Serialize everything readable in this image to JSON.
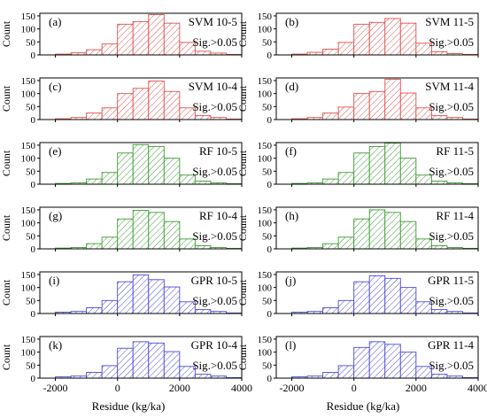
{
  "figure": {
    "x_axis_label": "Residue (kg/ka)",
    "y_axis_label": "Count",
    "x_ticks": [
      -2000,
      0,
      2000,
      4000
    ],
    "y_ticks": [
      0,
      50,
      100,
      150
    ]
  },
  "colors": {
    "SVM": "#e05050",
    "RF": "#3c9a32",
    "GPR": "#4a4ad8"
  },
  "chart_data": [
    {
      "type": "bar",
      "panel": "(a)",
      "model": "SVM",
      "label": "SVM 10-5",
      "sig": "Sig.>0.05",
      "bin_edges": [
        -2500,
        -2000,
        -1500,
        -1000,
        -500,
        0,
        500,
        1000,
        1500,
        2000,
        2500,
        3000,
        3500,
        4000
      ],
      "values": [
        0,
        3,
        8,
        20,
        42,
        118,
        128,
        155,
        122,
        48,
        14,
        7,
        2
      ],
      "xlim": [
        -2500,
        4000
      ],
      "ylim": [
        0,
        160
      ],
      "xlabel": "",
      "ylabel": "Count"
    },
    {
      "type": "bar",
      "panel": "(b)",
      "model": "SVM",
      "label": "SVM 11-5",
      "sig": "Sig.>0.05",
      "bin_edges": [
        -2500,
        -2000,
        -1500,
        -1000,
        -500,
        0,
        500,
        1000,
        1500,
        2000,
        2500,
        3000,
        3500,
        4000
      ],
      "values": [
        0,
        3,
        10,
        22,
        48,
        118,
        125,
        140,
        122,
        45,
        12,
        5,
        2
      ],
      "xlim": [
        -2500,
        4000
      ],
      "ylim": [
        0,
        160
      ],
      "xlabel": "",
      "ylabel": ""
    },
    {
      "type": "bar",
      "panel": "(c)",
      "model": "SVM",
      "label": "SVM 10-4",
      "sig": "Sig.>0.05",
      "bin_edges": [
        -2500,
        -2000,
        -1500,
        -1000,
        -500,
        0,
        500,
        1000,
        1500,
        2000,
        2500,
        3000,
        3500,
        4000
      ],
      "values": [
        0,
        3,
        8,
        25,
        45,
        100,
        120,
        148,
        108,
        45,
        15,
        8,
        2
      ],
      "xlim": [
        -2500,
        4000
      ],
      "ylim": [
        0,
        160
      ],
      "xlabel": "",
      "ylabel": "Count"
    },
    {
      "type": "bar",
      "panel": "(d)",
      "model": "SVM",
      "label": "SVM 11-4",
      "sig": "Sig.>0.05",
      "bin_edges": [
        -2500,
        -2000,
        -1500,
        -1000,
        -500,
        0,
        500,
        1000,
        1500,
        2000,
        2500,
        3000,
        3500,
        4000
      ],
      "values": [
        0,
        3,
        8,
        25,
        48,
        100,
        108,
        155,
        102,
        45,
        15,
        8,
        2
      ],
      "xlim": [
        -2500,
        4000
      ],
      "ylim": [
        0,
        160
      ],
      "xlabel": "",
      "ylabel": ""
    },
    {
      "type": "bar",
      "panel": "(e)",
      "model": "RF",
      "label": "RF 10-5",
      "sig": "Sig.>0.05",
      "bin_edges": [
        -2500,
        -2000,
        -1500,
        -1000,
        -500,
        0,
        500,
        1000,
        1500,
        2000,
        2500,
        3000,
        3500,
        4000
      ],
      "values": [
        0,
        3,
        5,
        20,
        45,
        120,
        152,
        145,
        100,
        35,
        12,
        5,
        2
      ],
      "xlim": [
        -2500,
        4000
      ],
      "ylim": [
        0,
        160
      ],
      "xlabel": "",
      "ylabel": "Count"
    },
    {
      "type": "bar",
      "panel": "(f)",
      "model": "RF",
      "label": "RF 11-5",
      "sig": "Sig.>0.05",
      "bin_edges": [
        -2500,
        -2000,
        -1500,
        -1000,
        -500,
        0,
        500,
        1000,
        1500,
        2000,
        2500,
        3000,
        3500,
        4000
      ],
      "values": [
        0,
        3,
        5,
        20,
        45,
        120,
        145,
        158,
        100,
        35,
        12,
        5,
        2
      ],
      "xlim": [
        -2500,
        4000
      ],
      "ylim": [
        0,
        160
      ],
      "xlabel": "",
      "ylabel": ""
    },
    {
      "type": "bar",
      "panel": "(g)",
      "model": "RF",
      "label": "RF 10-4",
      "sig": "Sig.>0.05",
      "bin_edges": [
        -2500,
        -2000,
        -1500,
        -1000,
        -500,
        0,
        500,
        1000,
        1500,
        2000,
        2500,
        3000,
        3500,
        4000
      ],
      "values": [
        0,
        3,
        5,
        20,
        45,
        115,
        148,
        140,
        105,
        38,
        12,
        5,
        2
      ],
      "xlim": [
        -2500,
        4000
      ],
      "ylim": [
        0,
        160
      ],
      "xlabel": "",
      "ylabel": "Count"
    },
    {
      "type": "bar",
      "panel": "(h)",
      "model": "RF",
      "label": "RF 11-4",
      "sig": "Sig.>0.05",
      "bin_edges": [
        -2500,
        -2000,
        -1500,
        -1000,
        -500,
        0,
        500,
        1000,
        1500,
        2000,
        2500,
        3000,
        3500,
        4000
      ],
      "values": [
        0,
        3,
        5,
        20,
        45,
        115,
        150,
        140,
        105,
        38,
        12,
        5,
        2
      ],
      "xlim": [
        -2500,
        4000
      ],
      "ylim": [
        0,
        160
      ],
      "xlabel": "",
      "ylabel": ""
    },
    {
      "type": "bar",
      "panel": "(i)",
      "model": "GPR",
      "label": "GPR 10-5",
      "sig": "Sig.>0.05",
      "bin_edges": [
        -2500,
        -2000,
        -1500,
        -1000,
        -500,
        0,
        500,
        1000,
        1500,
        2000,
        2500,
        3000,
        3500,
        4000
      ],
      "values": [
        0,
        5,
        8,
        22,
        50,
        122,
        148,
        130,
        102,
        45,
        15,
        8,
        2
      ],
      "xlim": [
        -2500,
        4000
      ],
      "ylim": [
        0,
        160
      ],
      "xlabel": "",
      "ylabel": "Count"
    },
    {
      "type": "bar",
      "panel": "(j)",
      "model": "GPR",
      "label": "GPR 11-5",
      "sig": "Sig.>0.05",
      "bin_edges": [
        -2500,
        -2000,
        -1500,
        -1000,
        -500,
        0,
        500,
        1000,
        1500,
        2000,
        2500,
        3000,
        3500,
        4000
      ],
      "values": [
        0,
        5,
        8,
        22,
        50,
        122,
        145,
        135,
        100,
        45,
        15,
        8,
        2
      ],
      "xlim": [
        -2500,
        4000
      ],
      "ylim": [
        0,
        160
      ],
      "xlabel": "",
      "ylabel": ""
    },
    {
      "type": "bar",
      "panel": "(k)",
      "model": "GPR",
      "label": "GPR 10-4",
      "sig": "Sig.>0.05",
      "bin_edges": [
        -2500,
        -2000,
        -1500,
        -1000,
        -500,
        0,
        500,
        1000,
        1500,
        2000,
        2500,
        3000,
        3500,
        4000
      ],
      "values": [
        0,
        5,
        8,
        22,
        48,
        115,
        140,
        135,
        102,
        45,
        15,
        8,
        2
      ],
      "xlim": [
        -2500,
        4000
      ],
      "ylim": [
        0,
        160
      ],
      "xlabel": "Residue (kg/ka)",
      "ylabel": "Count"
    },
    {
      "type": "bar",
      "panel": "(l)",
      "model": "GPR",
      "label": "GPR 11-4",
      "sig": "Sig.>0.05",
      "bin_edges": [
        -2500,
        -2000,
        -1500,
        -1000,
        -500,
        0,
        500,
        1000,
        1500,
        2000,
        2500,
        3000,
        3500,
        4000
      ],
      "values": [
        0,
        5,
        8,
        22,
        48,
        118,
        140,
        130,
        100,
        45,
        15,
        8,
        2
      ],
      "xlim": [
        -2500,
        4000
      ],
      "ylim": [
        0,
        160
      ],
      "xlabel": "Residue (kg/ka)",
      "ylabel": ""
    }
  ]
}
